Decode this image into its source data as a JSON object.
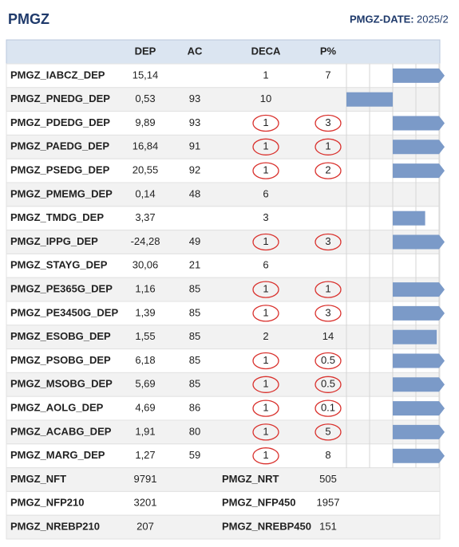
{
  "header": {
    "title": "PMGZ",
    "date_label": "PMGZ-DATE:",
    "date_value": "2025/2"
  },
  "table": {
    "columns": [
      "DEP",
      "AC",
      "DECA",
      "P%"
    ],
    "bar_range": [
      -2,
      2
    ],
    "bar_ticks": [
      -2,
      -1,
      0,
      1,
      2
    ],
    "bar_color": "#7b9ac8",
    "circle_color": "#d9302c",
    "rows": [
      {
        "name": "PMGZ_IABCZ_DEP",
        "dep": "15,14",
        "ac": null,
        "deca": "1",
        "p": "7",
        "deca_circled": false,
        "p_circled": false,
        "bar": 2.2
      },
      {
        "name": "PMGZ_PNEDG_DEP",
        "dep": "0,53",
        "ac": "93",
        "deca": "10",
        "p": null,
        "deca_circled": false,
        "p_circled": false,
        "bar": -2
      },
      {
        "name": "PMGZ_PDEDG_DEP",
        "dep": "9,89",
        "ac": "93",
        "deca": "1",
        "p": "3",
        "deca_circled": true,
        "p_circled": true,
        "bar": 2.2
      },
      {
        "name": "PMGZ_PAEDG_DEP",
        "dep": "16,84",
        "ac": "91",
        "deca": "1",
        "p": "1",
        "deca_circled": true,
        "p_circled": true,
        "bar": 2.2
      },
      {
        "name": "PMGZ_PSEDG_DEP",
        "dep": "20,55",
        "ac": "92",
        "deca": "1",
        "p": "2",
        "deca_circled": true,
        "p_circled": true,
        "bar": 2.2
      },
      {
        "name": "PMGZ_PMEMG_DEP",
        "dep": "0,14",
        "ac": "48",
        "deca": "6",
        "p": null,
        "deca_circled": false,
        "p_circled": false,
        "bar": null
      },
      {
        "name": "PMGZ_TMDG_DEP",
        "dep": "3,37",
        "ac": null,
        "deca": "3",
        "p": null,
        "deca_circled": false,
        "p_circled": false,
        "bar": 1.4
      },
      {
        "name": "PMGZ_IPPG_DEP",
        "dep": "-24,28",
        "ac": "49",
        "deca": "1",
        "p": "3",
        "deca_circled": true,
        "p_circled": true,
        "bar": 2.2
      },
      {
        "name": "PMGZ_STAYG_DEP",
        "dep": "30,06",
        "ac": "21",
        "deca": "6",
        "p": null,
        "deca_circled": false,
        "p_circled": false,
        "bar": null
      },
      {
        "name": "PMGZ_PE365G_DEP",
        "dep": "1,16",
        "ac": "85",
        "deca": "1",
        "p": "1",
        "deca_circled": true,
        "p_circled": true,
        "bar": 2.2
      },
      {
        "name": "PMGZ_PE3450G_DEP",
        "dep": "1,39",
        "ac": "85",
        "deca": "1",
        "p": "3",
        "deca_circled": true,
        "p_circled": true,
        "bar": 2.2
      },
      {
        "name": "PMGZ_ESOBG_DEP",
        "dep": "1,55",
        "ac": "85",
        "deca": "2",
        "p": "14",
        "deca_circled": false,
        "p_circled": false,
        "bar": 1.9
      },
      {
        "name": "PMGZ_PSOBG_DEP",
        "dep": "6,18",
        "ac": "85",
        "deca": "1",
        "p": "0.5",
        "deca_circled": true,
        "p_circled": true,
        "bar": 2.2
      },
      {
        "name": "PMGZ_MSOBG_DEP",
        "dep": "5,69",
        "ac": "85",
        "deca": "1",
        "p": "0.5",
        "deca_circled": true,
        "p_circled": true,
        "bar": 2.2
      },
      {
        "name": "PMGZ_AOLG_DEP",
        "dep": "4,69",
        "ac": "86",
        "deca": "1",
        "p": "0.1",
        "deca_circled": true,
        "p_circled": true,
        "bar": 2.2
      },
      {
        "name": "PMGZ_ACABG_DEP",
        "dep": "1,91",
        "ac": "80",
        "deca": "1",
        "p": "5",
        "deca_circled": true,
        "p_circled": true,
        "bar": 2.2
      },
      {
        "name": "PMGZ_MARG_DEP",
        "dep": "1,27",
        "ac": "59",
        "deca": "1",
        "p": "8",
        "deca_circled": true,
        "p_circled": false,
        "bar": 2.2
      }
    ],
    "summary": [
      [
        "PMGZ_NFT",
        "9791",
        "PMGZ_NRT",
        "505"
      ],
      [
        "PMGZ_NFP210",
        "3201",
        "PMGZ_NFP450",
        "1957"
      ],
      [
        "PMGZ_NREBP210",
        "207",
        "PMGZ_NREBP450",
        "151"
      ]
    ]
  }
}
